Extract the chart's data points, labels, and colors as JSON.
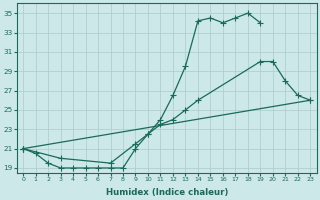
{
  "xlabel": "Humidex (Indice chaleur)",
  "bg_color": "#cce8e8",
  "grid_color": "#aacccc",
  "line_color": "#1a6a5a",
  "xlim": [
    -0.5,
    23.5
  ],
  "ylim": [
    18.5,
    36.0
  ],
  "xticks": [
    0,
    1,
    2,
    3,
    4,
    5,
    6,
    7,
    8,
    9,
    10,
    11,
    12,
    13,
    14,
    15,
    16,
    17,
    18,
    19,
    20,
    21,
    22,
    23
  ],
  "yticks": [
    19,
    21,
    23,
    25,
    27,
    29,
    31,
    33,
    35
  ],
  "line1_x": [
    0,
    1,
    2,
    3,
    4,
    5,
    6,
    7,
    8,
    9,
    10,
    11,
    12,
    13,
    14,
    15,
    16,
    17,
    18,
    19
  ],
  "line1_y": [
    21.0,
    20.5,
    19.5,
    19.0,
    19.0,
    19.0,
    19.0,
    19.0,
    19.0,
    21.0,
    22.5,
    24.0,
    26.5,
    29.5,
    34.2,
    34.5,
    34.0,
    34.5,
    35.0,
    34.0
  ],
  "line2_x": [
    0,
    3,
    7,
    9,
    10,
    11,
    12,
    13,
    14,
    19,
    20,
    21,
    22,
    23
  ],
  "line2_y": [
    21.0,
    20.0,
    19.5,
    21.5,
    22.5,
    23.5,
    24.0,
    25.0,
    26.0,
    30.0,
    30.0,
    28.0,
    26.5,
    26.0
  ],
  "line3_x": [
    0,
    23
  ],
  "line3_y": [
    21.0,
    26.0
  ]
}
